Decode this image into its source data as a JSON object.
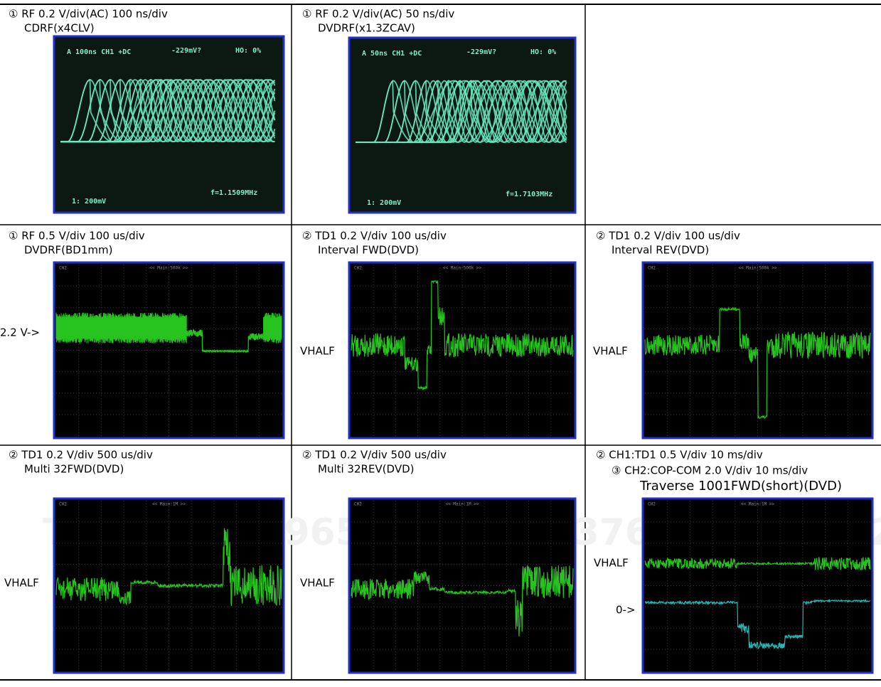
{
  "cells": [
    {
      "lines": [
        "① RF 0.2 V/div(AC)  100 ns/div",
        "CDRF(x4CLV)"
      ],
      "screen": {
        "top": "A 100ns  CH1 +DC",
        "mid": "-229mV?",
        "ho": "HO:  0%",
        "ch": "1: 200mV",
        "freq": "f=1.1509MHz"
      }
    },
    {
      "lines": [
        "① RF 0.2 V/div(AC)  50 ns/div",
        "DVDRF(x1.3ZCAV)"
      ],
      "screen": {
        "top": "A 50ns  CH1 +DC",
        "mid": "-229mV?",
        "ho": "HO:  0%",
        "ch": "1: 200mV",
        "freq": "f=1.7103MHz"
      }
    },
    {
      "lines": [
        "① RF 0.5 V/div  100 us/div",
        "DVDRF(BD1mm)"
      ],
      "screen": {
        "ch": "CH2",
        "main": "<< Main:500k >>"
      },
      "labels": [
        "2.2 V->"
      ]
    },
    {
      "lines": [
        "② TD1 0.2 V/div  100 us/div",
        "Interval FWD(DVD)"
      ],
      "screen": {
        "ch": "CH2",
        "main": "<< Main:500k >>"
      },
      "labels": [
        "VHALF"
      ]
    },
    {
      "lines": [
        "② TD1  0.2 V/div  100 us/div",
        "Interval REV(DVD)"
      ],
      "screen": {
        "ch": "CH2",
        "main": "<< Main:500k >>"
      },
      "labels": [
        "VHALF"
      ]
    },
    {
      "lines": [
        "② TD1 0.2 V/div  500 us/div",
        "Multi 32FWD(DVD)"
      ],
      "screen": {
        "ch": "CH2",
        "main": "<< Main:1M >>"
      },
      "labels": [
        "VHALF"
      ]
    },
    {
      "lines": [
        "② TD1 0.2 V/div  500 us/div",
        "Multi 32REV(DVD)"
      ],
      "screen": {
        "ch": "CH2",
        "main": "<< Main:1M >>"
      },
      "labels": [
        "VHALF"
      ]
    },
    {
      "lines": [
        "② CH1:TD1  0.5 V/div  10 ms/div",
        "③ CH2:COP-COM  2.0 V/div  10 ms/div",
        "Traverse 1001FWD(short)(DVD)"
      ],
      "screen": {
        "ch": "CH2",
        "main": "<< Main:1M >>"
      },
      "labels": [
        "VHALF",
        "0->"
      ]
    }
  ],
  "watermark": [
    "TEL  13942296513",
    "QQ  376815150  8924"
  ]
}
